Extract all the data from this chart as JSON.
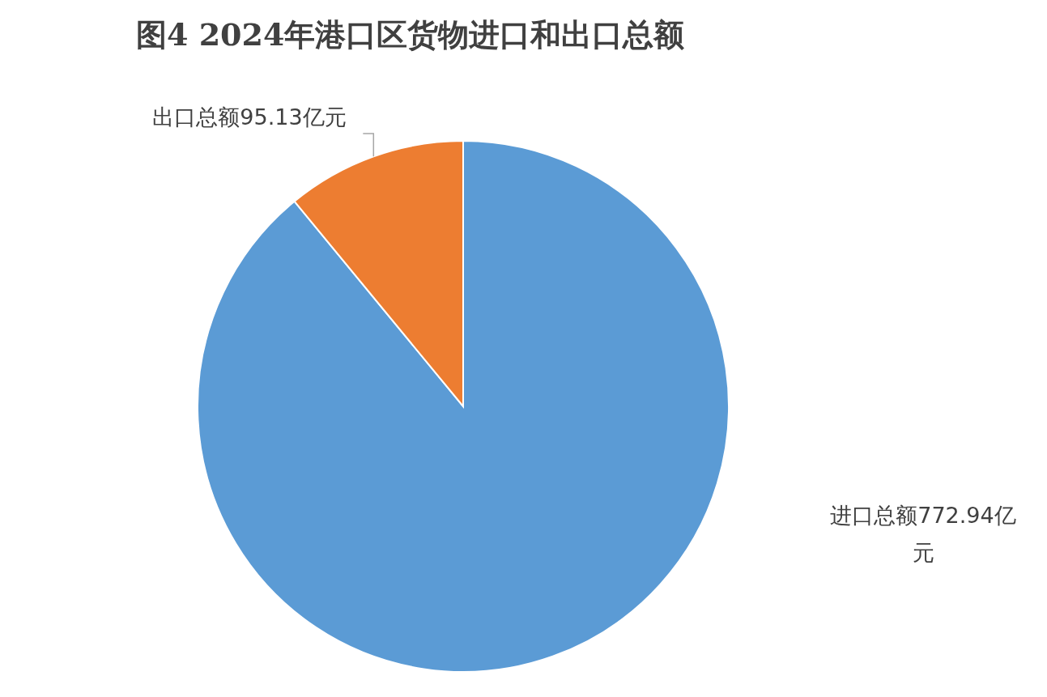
{
  "chart_data": {
    "type": "pie",
    "title": "图4 2024年港口区货物进口和出口总额",
    "categories": [
      "进口总额",
      "出口总额"
    ],
    "values": [
      772.94,
      95.13
    ],
    "value_labels": [
      "772.94亿元",
      "95.13亿元"
    ],
    "colors": [
      "#5b9bd5",
      "#ed7d31"
    ]
  }
}
